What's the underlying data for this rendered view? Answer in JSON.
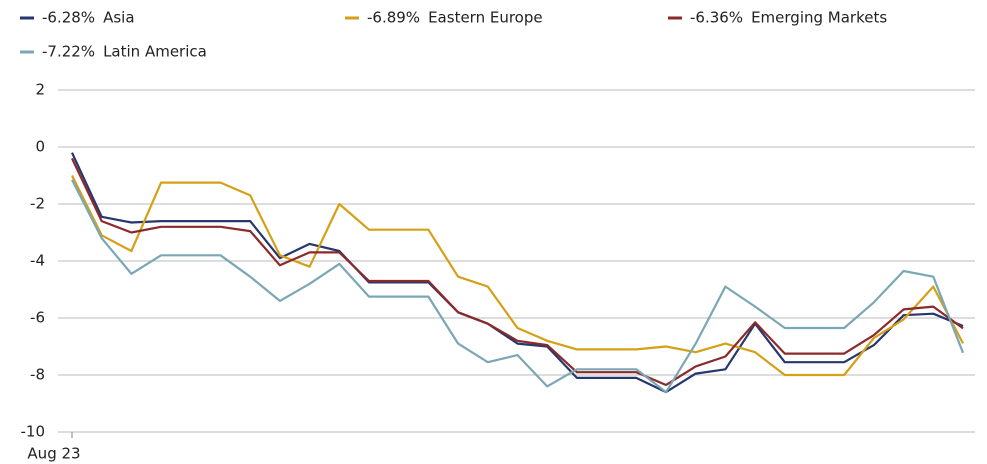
{
  "chart_data": {
    "type": "line",
    "categories": [
      "Aug 23",
      null,
      null,
      null,
      null,
      null,
      null,
      null,
      null,
      null,
      null,
      null,
      null,
      null,
      null,
      null,
      null,
      null,
      null,
      null,
      null,
      null,
      null,
      null,
      null,
      null,
      null,
      null,
      null,
      null,
      null
    ],
    "series": [
      {
        "name": "Asia",
        "legend_label": "-6.28%",
        "color": "#27366e",
        "values": [
          -0.2,
          -2.45,
          -2.65,
          -2.6,
          -2.6,
          -2.6,
          -2.6,
          -3.9,
          -3.4,
          -3.65,
          -4.75,
          -4.75,
          -4.75,
          -5.8,
          -6.2,
          -6.9,
          -7.0,
          -8.1,
          -8.1,
          -8.1,
          -8.6,
          -7.95,
          -7.8,
          -6.2,
          -7.55,
          -7.55,
          -7.55,
          -6.95,
          -5.9,
          -5.85,
          -6.28
        ]
      },
      {
        "name": "Eastern Europe",
        "legend_label": "-6.89%",
        "color": "#d4a017",
        "values": [
          -1.0,
          -3.1,
          -3.65,
          -1.25,
          -1.25,
          -1.25,
          -1.7,
          -3.8,
          -4.2,
          -2.0,
          -2.9,
          -2.9,
          -2.9,
          -4.55,
          -4.9,
          -6.35,
          -6.8,
          -7.1,
          -7.1,
          -7.1,
          -7.0,
          -7.2,
          -6.9,
          -7.2,
          -8.0,
          -8.0,
          -8.0,
          -6.7,
          -6.05,
          -4.9,
          -6.89
        ]
      },
      {
        "name": "Emerging Markets",
        "legend_label": "-6.36%",
        "color": "#8b2a2a",
        "values": [
          -0.4,
          -2.6,
          -3.0,
          -2.8,
          -2.8,
          -2.8,
          -2.95,
          -4.15,
          -3.7,
          -3.7,
          -4.7,
          -4.7,
          -4.7,
          -5.8,
          -6.2,
          -6.8,
          -6.95,
          -7.9,
          -7.9,
          -7.9,
          -8.35,
          -7.7,
          -7.35,
          -6.15,
          -7.25,
          -7.25,
          -7.25,
          -6.6,
          -5.7,
          -5.6,
          -6.36
        ]
      },
      {
        "name": "Latin America",
        "legend_label": "-7.22%",
        "color": "#7ba7b5",
        "values": [
          -1.15,
          -3.2,
          -4.45,
          -3.8,
          -3.8,
          -3.8,
          -4.55,
          -5.4,
          -4.8,
          -4.1,
          -5.25,
          -5.25,
          -5.25,
          -6.9,
          -7.55,
          -7.3,
          -8.4,
          -7.8,
          -7.8,
          -7.8,
          -8.6,
          -6.9,
          -4.9,
          -5.6,
          -6.35,
          -6.35,
          -6.35,
          -5.45,
          -4.35,
          -4.55,
          -7.22
        ]
      }
    ],
    "ylim": [
      -10,
      2
    ],
    "yticks": [
      -10,
      -8,
      -6,
      -4,
      -2,
      0,
      2
    ],
    "grid": true
  }
}
